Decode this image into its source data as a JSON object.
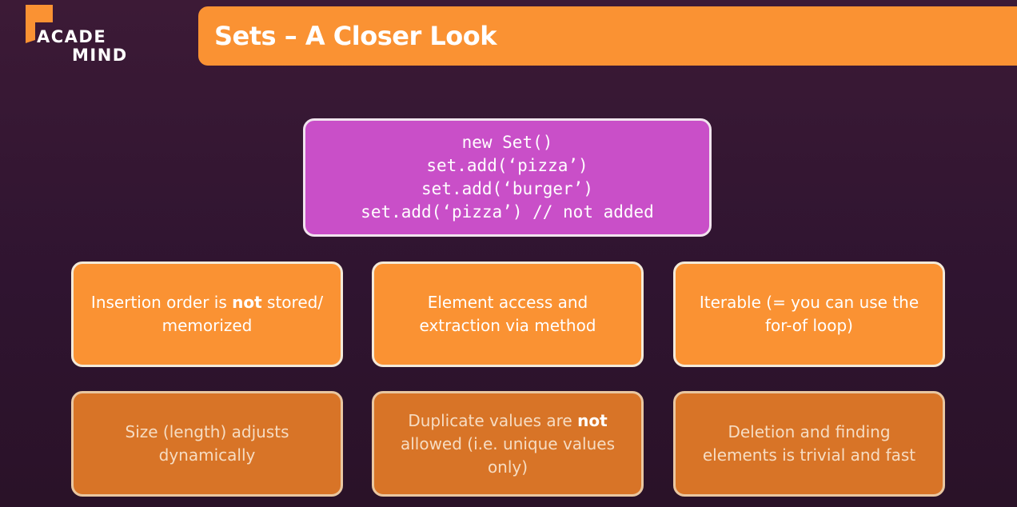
{
  "logo": {
    "line1": "ACADE",
    "line2": "MIND",
    "colors": {
      "flag": "#fa9233",
      "text": "#ffffff"
    }
  },
  "title": "Sets – A Closer Look",
  "code": {
    "lines": [
      "new Set()",
      "set.add(‘pizza’)",
      "set.add(‘burger’)",
      "set.add(‘pizza’) // not added"
    ]
  },
  "cards": [
    {
      "text_before": "Insertion order is ",
      "emphasis": "not",
      "text_after": " stored/ memorized"
    },
    {
      "text_before": "Element access and extraction via method",
      "emphasis": "",
      "text_after": ""
    },
    {
      "text_before": "Iterable (= you can use the for-of loop)",
      "emphasis": "",
      "text_after": ""
    },
    {
      "text_before": "Size (length) adjusts dynamically",
      "emphasis": "",
      "text_after": ""
    },
    {
      "text_before": "Duplicate values are ",
      "emphasis": "not",
      "text_after": " allowed (i.e. unique values only)"
    },
    {
      "text_before": "Deletion and finding elements is trivial and fast",
      "emphasis": "",
      "text_after": ""
    }
  ],
  "colors": {
    "background": "#351631",
    "accent_orange": "#fa9233",
    "dim_orange": "#d87427",
    "code_purple": "#c94fc8"
  }
}
